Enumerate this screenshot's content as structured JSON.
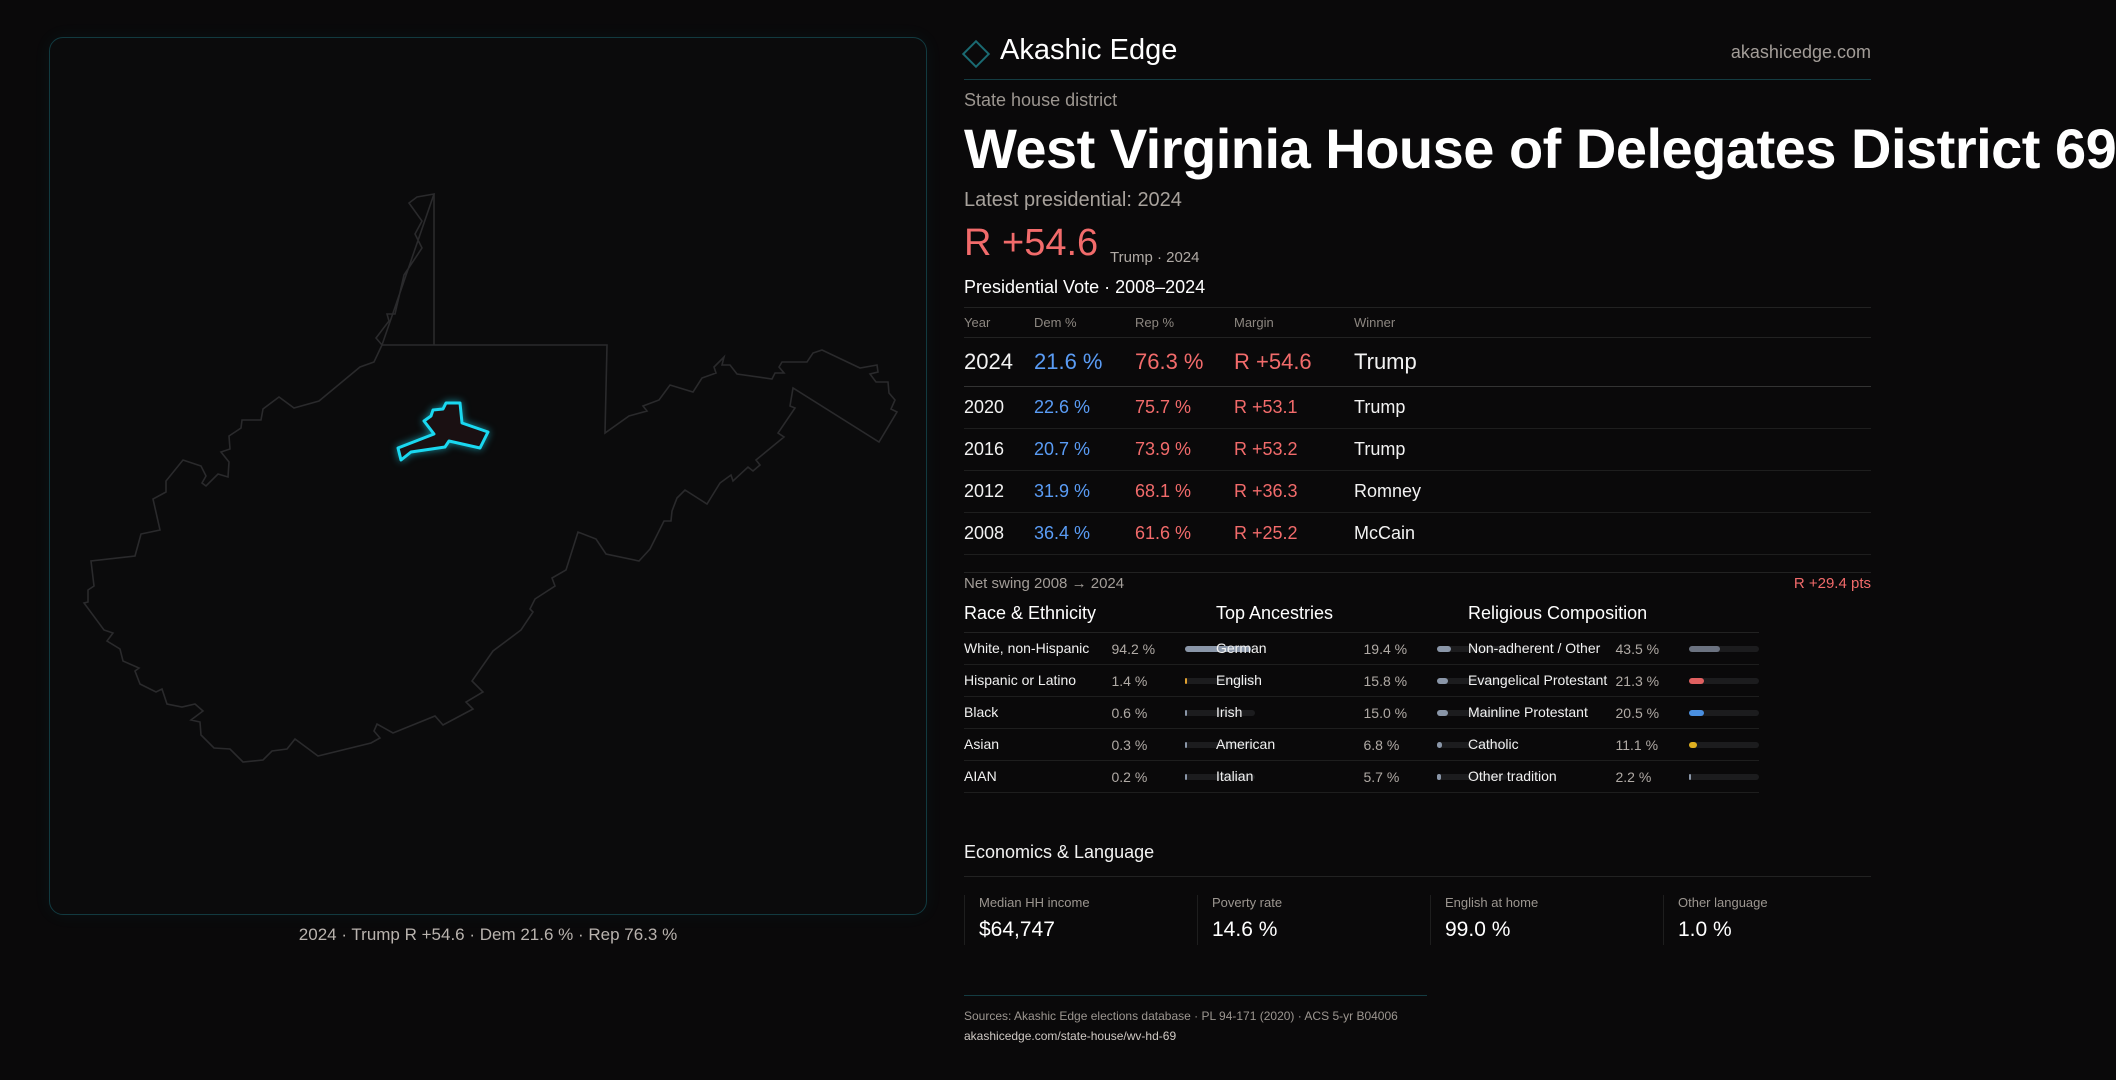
{
  "header": {
    "brand": "Akashic Edge",
    "site": "akashicedge.com",
    "logo_icon": "diamond-icon"
  },
  "kicker": "State house district",
  "title": "West Virginia House of Delegates District 69",
  "latest_label": "Latest presidential: 2024",
  "latest_margin": "R +54.6",
  "latest_sub": "Trump · 2024",
  "vote_title": "Presidential Vote · 2008–2024",
  "table": {
    "headers": [
      "Year",
      "Dem %",
      "Rep %",
      "Margin",
      "Winner"
    ],
    "rows": [
      [
        "2024",
        "21.6 %",
        "76.3 %",
        "R +54.6",
        "Trump"
      ],
      [
        "2020",
        "22.6 %",
        "75.7 %",
        "R +53.1",
        "Trump"
      ],
      [
        "2016",
        "20.7 %",
        "73.9 %",
        "R +53.2",
        "Trump"
      ],
      [
        "2012",
        "31.9 %",
        "68.1 %",
        "R +36.3",
        "Romney"
      ],
      [
        "2008",
        "36.4 %",
        "61.6 %",
        "R +25.2",
        "McCain"
      ]
    ]
  },
  "swing": {
    "label": "Net swing 2008 → 2024",
    "value": "R +29.4 pts"
  },
  "sections": [
    {
      "title": "Race & Ethnicity",
      "items": [
        {
          "label": "White, non-Hispanic",
          "value": "94.2 %",
          "pct": 94.2,
          "color": "#8a96a8"
        },
        {
          "label": "Hispanic or Latino",
          "value": "1.4 %",
          "pct": 1.4,
          "color": "#e0a030"
        },
        {
          "label": "Black",
          "value": "0.6 %",
          "pct": 0.6,
          "color": "#8a96a8"
        },
        {
          "label": "Asian",
          "value": "0.3 %",
          "pct": 0.3,
          "color": "#8a96a8"
        },
        {
          "label": "AIAN",
          "value": "0.2 %",
          "pct": 0.2,
          "color": "#8a96a8"
        }
      ]
    },
    {
      "title": "Top Ancestries",
      "items": [
        {
          "label": "German",
          "value": "19.4 %",
          "pct": 19.4,
          "color": "#8a96a8"
        },
        {
          "label": "English",
          "value": "15.8 %",
          "pct": 15.8,
          "color": "#8a96a8"
        },
        {
          "label": "Irish",
          "value": "15.0 %",
          "pct": 15.0,
          "color": "#8a96a8"
        },
        {
          "label": "American",
          "value": "6.8 %",
          "pct": 6.8,
          "color": "#8a96a8"
        },
        {
          "label": "Italian",
          "value": "5.7 %",
          "pct": 5.7,
          "color": "#8a96a8"
        }
      ]
    },
    {
      "title": "Religious Composition",
      "items": [
        {
          "label": "Non-adherent / Other",
          "value": "43.5 %",
          "pct": 43.5,
          "color": "#6b7280"
        },
        {
          "label": "Evangelical Protestant",
          "value": "21.3 %",
          "pct": 21.3,
          "color": "#e06060"
        },
        {
          "label": "Mainline Protestant",
          "value": "20.5 %",
          "pct": 20.5,
          "color": "#4a8fe0"
        },
        {
          "label": "Catholic",
          "value": "11.1 %",
          "pct": 11.1,
          "color": "#e0b020"
        },
        {
          "label": "Other tradition",
          "value": "2.2 %",
          "pct": 2.2,
          "color": "#8a96a8"
        }
      ]
    }
  ],
  "economics": {
    "title": "Economics & Language",
    "cards": [
      {
        "label": "Median HH income",
        "value": "$64,747"
      },
      {
        "label": "Poverty rate",
        "value": "14.6 %"
      },
      {
        "label": "English at home",
        "value": "99.0 %"
      },
      {
        "label": "Other language",
        "value": "1.0 %"
      }
    ]
  },
  "footer": {
    "sources": "Sources: Akashic Edge elections database · PL 94-171 (2020) · ACS 5-yr B04006",
    "url": "akashicedge.com/state-house/wv-hd-69"
  },
  "map": {
    "caption": "2024 · Trump R +54.6 · Dem 21.6 % · Rep 76.3 %",
    "highlight_color": "#1ad8f0"
  }
}
